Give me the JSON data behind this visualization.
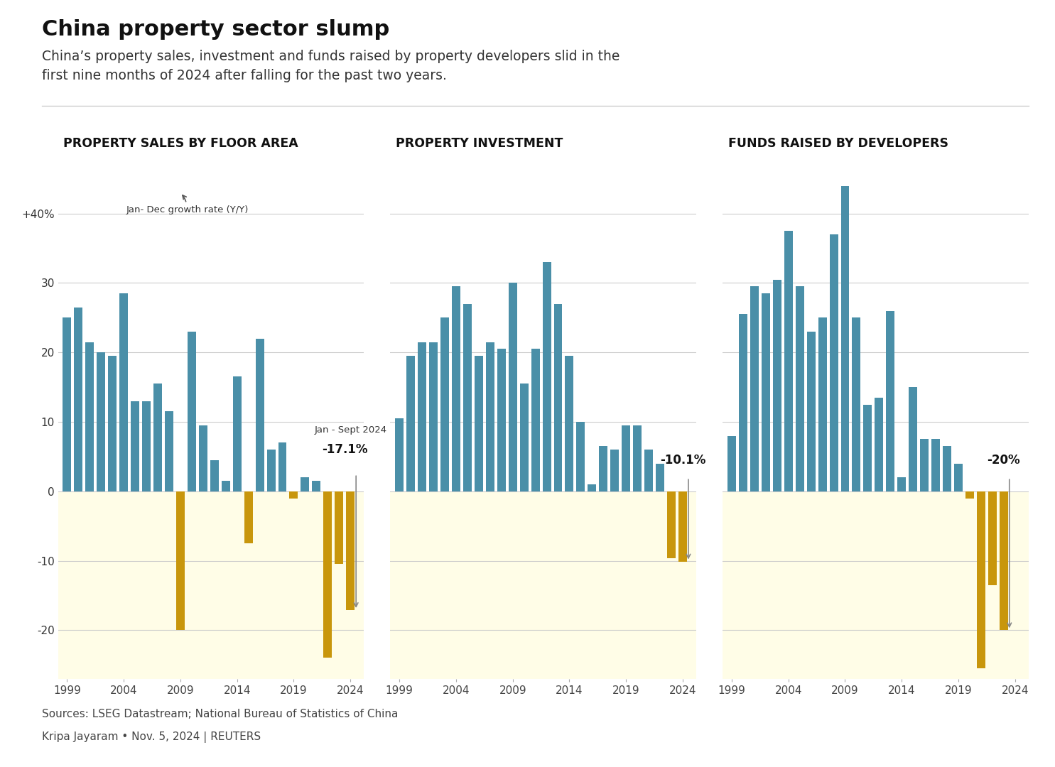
{
  "title": "China property sector slump",
  "subtitle": "China’s property sales, investment and funds raised by property developers slid in the\nfirst nine months of 2024 after falling for the past two years.",
  "background_color": "#FFFFFF",
  "chart_bg_negative": "#FFFDE7",
  "teal_color": "#4A8FA8",
  "gold_color": "#C8960C",
  "panel_titles": [
    "PROPERTY SALES BY FLOOR AREA",
    "PROPERTY INVESTMENT",
    "FUNDS RAISED BY DEVELOPERS"
  ],
  "ylim": [
    -27,
    47
  ],
  "yticks": [
    -20,
    -10,
    0,
    10,
    20,
    30
  ],
  "ytick_labels": [
    "-20",
    "-10",
    "0",
    "10",
    "20",
    "30"
  ],
  "xlabel_years": [
    1999,
    2004,
    2009,
    2014,
    2019,
    2024
  ],
  "sales_years": [
    1999,
    2000,
    2001,
    2002,
    2003,
    2004,
    2005,
    2006,
    2007,
    2008,
    2009,
    2010,
    2011,
    2012,
    2013,
    2014,
    2015,
    2016,
    2017,
    2018,
    2019,
    2020,
    2021,
    2022,
    2023,
    2024
  ],
  "sales_values": [
    25.0,
    26.5,
    21.5,
    20.0,
    19.5,
    28.5,
    13.0,
    13.0,
    15.5,
    11.5,
    -20.0,
    23.0,
    9.5,
    4.5,
    1.5,
    16.5,
    -7.5,
    22.0,
    6.0,
    7.0,
    -1.0,
    2.0,
    1.5,
    -24.0,
    -10.5,
    -17.1
  ],
  "invest_years": [
    1999,
    2000,
    2001,
    2002,
    2003,
    2004,
    2005,
    2006,
    2007,
    2008,
    2009,
    2010,
    2011,
    2012,
    2013,
    2014,
    2015,
    2016,
    2017,
    2018,
    2019,
    2020,
    2021,
    2022,
    2023,
    2024
  ],
  "invest_values": [
    10.5,
    19.5,
    21.5,
    21.5,
    25.0,
    29.5,
    27.0,
    19.5,
    21.5,
    20.5,
    30.0,
    15.5,
    20.5,
    33.0,
    27.0,
    19.5,
    10.0,
    1.0,
    6.5,
    6.0,
    9.5,
    9.5,
    6.0,
    4.0,
    -9.6,
    -10.1
  ],
  "funds_years": [
    1999,
    2000,
    2001,
    2002,
    2003,
    2004,
    2005,
    2006,
    2007,
    2008,
    2009,
    2010,
    2011,
    2012,
    2013,
    2014,
    2015,
    2016,
    2017,
    2018,
    2019,
    2020,
    2021,
    2022,
    2023,
    2024
  ],
  "funds_values": [
    8.0,
    25.5,
    29.5,
    28.5,
    30.5,
    37.5,
    29.5,
    23.0,
    25.0,
    37.0,
    44.0,
    25.0,
    12.5,
    13.5,
    26.0,
    2.0,
    15.0,
    7.5,
    7.5,
    6.5,
    4.0,
    -1.0,
    -25.5,
    -13.5,
    -20.0,
    null
  ],
  "source_text": "Sources: LSEG Datastream; National Bureau of Statistics of China",
  "credit_text": "Kripa Jayaram • Nov. 5, 2024 | REUTERS"
}
